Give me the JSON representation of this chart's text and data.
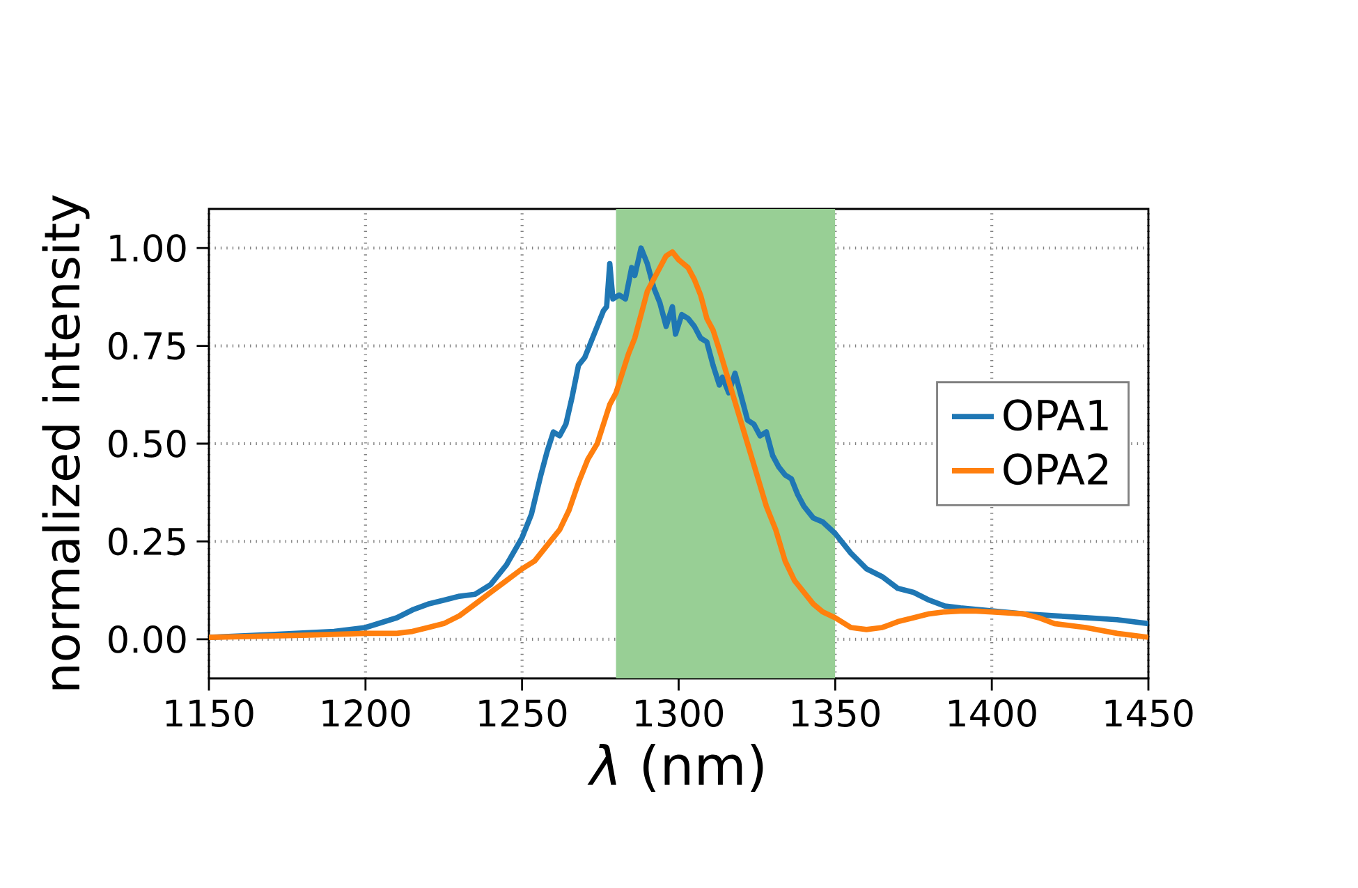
{
  "chart_data": {
    "type": "line",
    "xlabel": "*λ* (nm)",
    "ylabel": "normalized intensity",
    "xlim": [
      1150,
      1450
    ],
    "xticks": [
      1150,
      1200,
      1250,
      1300,
      1350,
      1400,
      1450
    ],
    "ylim": [
      -0.1,
      1.1
    ],
    "yticks": [
      {
        "value": 0,
        "label": "0.00"
      },
      {
        "value": 0.25,
        "label": "0.25"
      },
      {
        "value": 0.5,
        "label": "0.50"
      },
      {
        "value": 0.75,
        "label": "0.75"
      },
      {
        "value": 1,
        "label": "1.00"
      }
    ],
    "grid": true,
    "legend": "right",
    "line_style": "solid",
    "bands": [
      {
        "axis": "x",
        "from": 1280,
        "to": 1350,
        "color": "#98cf95"
      }
    ],
    "series": [
      {
        "name": "OPA1",
        "color": "#1f77b4",
        "x": [
          1150,
          1170,
          1190,
          1200,
          1210,
          1215,
          1220,
          1225,
          1230,
          1235,
          1240,
          1245,
          1250,
          1253,
          1256,
          1258,
          1260,
          1262,
          1264,
          1266,
          1268,
          1270,
          1272,
          1274,
          1276,
          1277,
          1278,
          1279,
          1281,
          1283,
          1285,
          1286,
          1288,
          1290,
          1292,
          1294,
          1296,
          1298,
          1299,
          1301,
          1303,
          1305,
          1307,
          1309,
          1311,
          1313,
          1314,
          1316,
          1318,
          1320,
          1322,
          1324,
          1326,
          1328,
          1330,
          1332,
          1334,
          1336,
          1338,
          1340,
          1343,
          1346,
          1350,
          1355,
          1360,
          1365,
          1370,
          1375,
          1380,
          1385,
          1390,
          1410,
          1420,
          1430,
          1440,
          1450
        ],
        "values": [
          0.005,
          0.012,
          0.02,
          0.03,
          0.055,
          0.075,
          0.09,
          0.1,
          0.11,
          0.115,
          0.14,
          0.19,
          0.26,
          0.32,
          0.42,
          0.48,
          0.53,
          0.52,
          0.55,
          0.62,
          0.7,
          0.72,
          0.76,
          0.8,
          0.84,
          0.85,
          0.96,
          0.87,
          0.88,
          0.87,
          0.95,
          0.93,
          1.0,
          0.96,
          0.9,
          0.86,
          0.8,
          0.85,
          0.78,
          0.83,
          0.82,
          0.8,
          0.77,
          0.76,
          0.7,
          0.65,
          0.67,
          0.63,
          0.68,
          0.62,
          0.56,
          0.55,
          0.52,
          0.53,
          0.47,
          0.44,
          0.42,
          0.41,
          0.37,
          0.34,
          0.31,
          0.3,
          0.27,
          0.22,
          0.18,
          0.16,
          0.13,
          0.12,
          0.1,
          0.085,
          0.08,
          0.065,
          0.06,
          0.055,
          0.05,
          0.04
        ]
      },
      {
        "name": "OPA2",
        "color": "#ff7f0e",
        "x": [
          1150,
          1180,
          1200,
          1210,
          1215,
          1220,
          1225,
          1230,
          1235,
          1240,
          1245,
          1250,
          1254,
          1258,
          1262,
          1265,
          1268,
          1271,
          1274,
          1276,
          1278,
          1280,
          1282,
          1284,
          1286,
          1288,
          1290,
          1292,
          1294,
          1296,
          1298,
          1300,
          1303,
          1305,
          1307,
          1309,
          1311,
          1313,
          1316,
          1319,
          1322,
          1325,
          1328,
          1331,
          1334,
          1337,
          1340,
          1343,
          1346,
          1350,
          1355,
          1360,
          1365,
          1370,
          1375,
          1380,
          1385,
          1390,
          1395,
          1400,
          1410,
          1415,
          1420,
          1430,
          1440,
          1450
        ],
        "values": [
          0.005,
          0.01,
          0.015,
          0.015,
          0.02,
          0.03,
          0.04,
          0.06,
          0.09,
          0.12,
          0.15,
          0.18,
          0.2,
          0.24,
          0.28,
          0.33,
          0.4,
          0.46,
          0.5,
          0.55,
          0.6,
          0.63,
          0.68,
          0.73,
          0.77,
          0.83,
          0.89,
          0.92,
          0.95,
          0.98,
          0.99,
          0.97,
          0.95,
          0.92,
          0.88,
          0.82,
          0.79,
          0.74,
          0.66,
          0.58,
          0.5,
          0.42,
          0.34,
          0.28,
          0.2,
          0.15,
          0.12,
          0.09,
          0.07,
          0.055,
          0.03,
          0.025,
          0.03,
          0.045,
          0.055,
          0.065,
          0.07,
          0.072,
          0.072,
          0.07,
          0.065,
          0.055,
          0.04,
          0.03,
          0.015,
          0.005
        ]
      }
    ]
  }
}
